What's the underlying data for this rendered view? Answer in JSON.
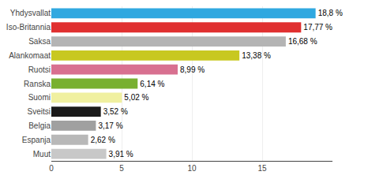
{
  "chart_data": {
    "type": "bar",
    "orientation": "horizontal",
    "categories": [
      "Yhdysvallat",
      "Iso-Britannia",
      "Saksa",
      "Alankomaat",
      "Ruotsi",
      "Ranska",
      "Suomi",
      "Sveitsi",
      "Belgia",
      "Espanja",
      "Muut"
    ],
    "values": [
      18.8,
      17.77,
      16.68,
      13.38,
      8.99,
      6.14,
      5.02,
      3.52,
      3.17,
      2.62,
      3.91
    ],
    "value_labels": [
      "18,8 %",
      "17,77 %",
      "16,68 %",
      "13,38 %",
      "8,99 %",
      "6,14 %",
      "5,02 %",
      "3,52 %",
      "3,17 %",
      "2,62 %",
      "3,91 %"
    ],
    "colors": [
      "#30a8e0",
      "#e03030",
      "#b4b4b4",
      "#c8c820",
      "#d87090",
      "#78b030",
      "#f0f0a0",
      "#1a1a1a",
      "#a0a0a0",
      "#b8b8b8",
      "#c8c8c8"
    ],
    "xlim": [
      0,
      20
    ],
    "xticks": [
      0,
      5,
      10,
      15
    ],
    "grid": true,
    "data_labels": true
  }
}
